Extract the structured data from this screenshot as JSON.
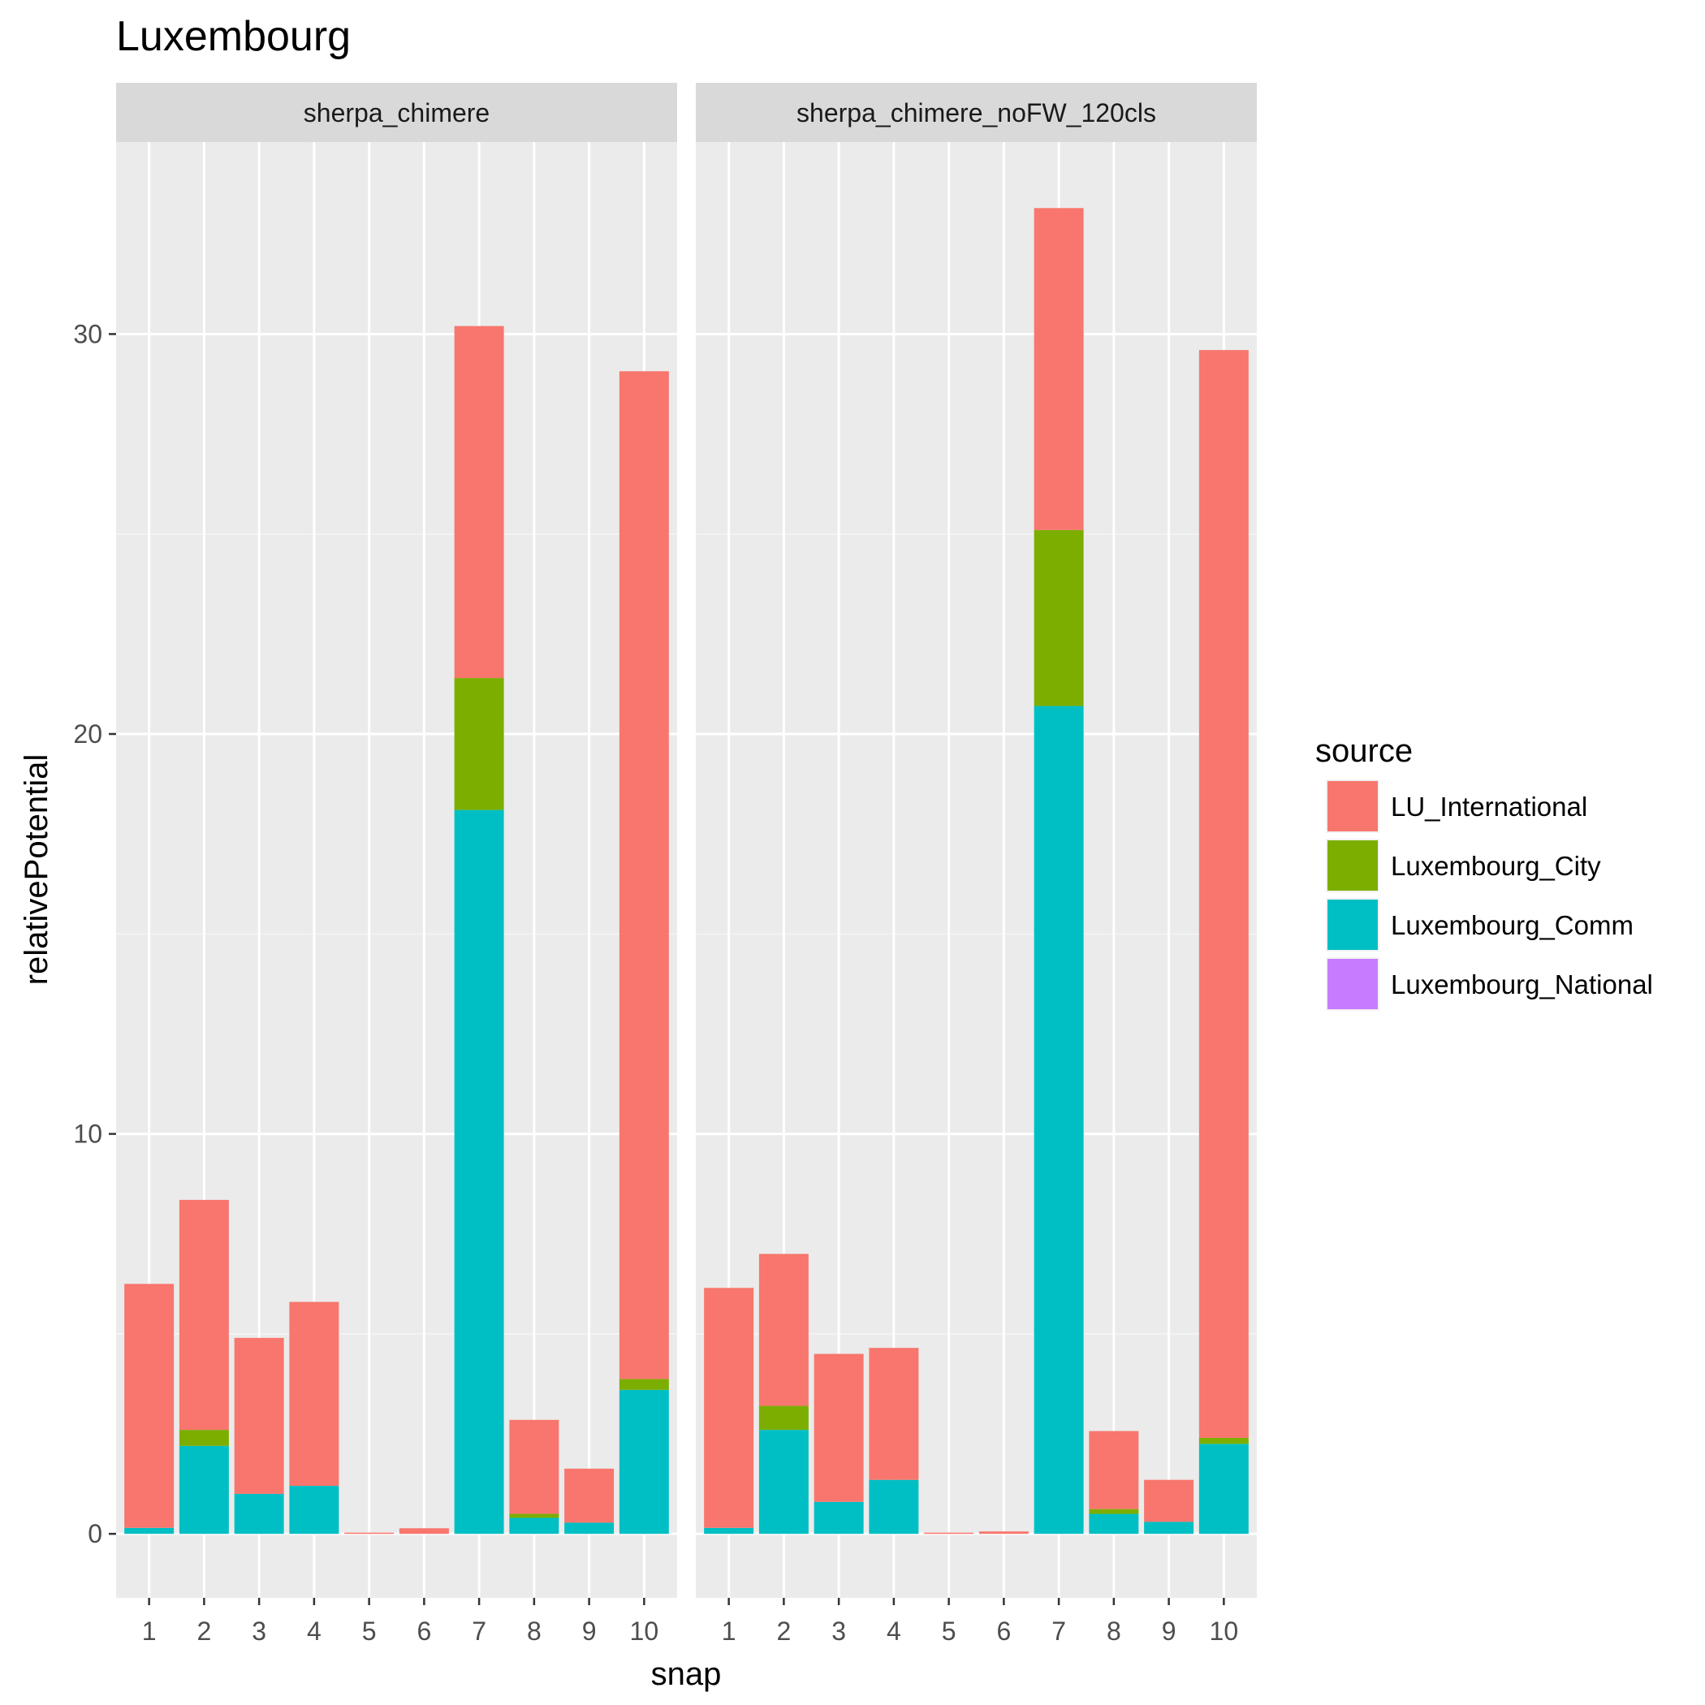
{
  "chart_data": {
    "type": "bar",
    "stacked": true,
    "title": "Luxembourg",
    "xlabel": "snap",
    "ylabel": "relativePotential",
    "ylim": [
      -1.6,
      34.8
    ],
    "y_ticks": [
      0,
      10,
      20,
      30
    ],
    "y_tick_labels": [
      "0",
      "10",
      "20",
      "30"
    ],
    "categories": [
      "1",
      "2",
      "3",
      "4",
      "5",
      "6",
      "7",
      "8",
      "9",
      "10"
    ],
    "grid": true,
    "legend": {
      "title": "source",
      "placement": "right",
      "entries": [
        "LU_International",
        "Luxembourg_City",
        "Luxembourg_Comm",
        "Luxembourg_National"
      ]
    },
    "colors": {
      "LU_International": "#F8766D",
      "Luxembourg_City": "#7CAE00",
      "Luxembourg_Comm": "#00BFC4",
      "Luxembourg_National": "#C77CFF"
    },
    "stack_order": [
      "Luxembourg_Comm",
      "Luxembourg_City",
      "LU_International"
    ],
    "facets": [
      {
        "name": "sherpa_chimere",
        "series": [
          {
            "name": "LU_International",
            "values": [
              6.1,
              5.75,
              3.9,
              4.6,
              0.03,
              0.14,
              8.8,
              2.35,
              1.35,
              25.2
            ]
          },
          {
            "name": "Luxembourg_City",
            "values": [
              0.0,
              0.4,
              0.0,
              0.0,
              0.0,
              0.0,
              3.3,
              0.1,
              0.0,
              0.27
            ]
          },
          {
            "name": "Luxembourg_Comm",
            "values": [
              0.15,
              2.2,
              1.0,
              1.2,
              0.0,
              0.0,
              18.1,
              0.4,
              0.28,
              3.6
            ]
          },
          {
            "name": "Luxembourg_National",
            "values": [
              0,
              0,
              0,
              0,
              0,
              0,
              0,
              0,
              0,
              0
            ]
          }
        ]
      },
      {
        "name": "sherpa_chimere_noFW_120cls",
        "series": [
          {
            "name": "LU_International",
            "values": [
              6.0,
              3.8,
              3.7,
              3.3,
              0.03,
              0.06,
              8.05,
              1.95,
              1.05,
              27.2
            ]
          },
          {
            "name": "Luxembourg_City",
            "values": [
              0.0,
              0.6,
              0.0,
              0.0,
              0.0,
              0.0,
              4.4,
              0.12,
              0.0,
              0.15
            ]
          },
          {
            "name": "Luxembourg_Comm",
            "values": [
              0.15,
              2.6,
              0.8,
              1.35,
              0.0,
              0.0,
              20.7,
              0.5,
              0.3,
              2.25
            ]
          },
          {
            "name": "Luxembourg_National",
            "values": [
              0,
              0,
              0,
              0,
              0,
              0,
              0,
              0,
              0,
              0
            ]
          }
        ]
      }
    ]
  }
}
